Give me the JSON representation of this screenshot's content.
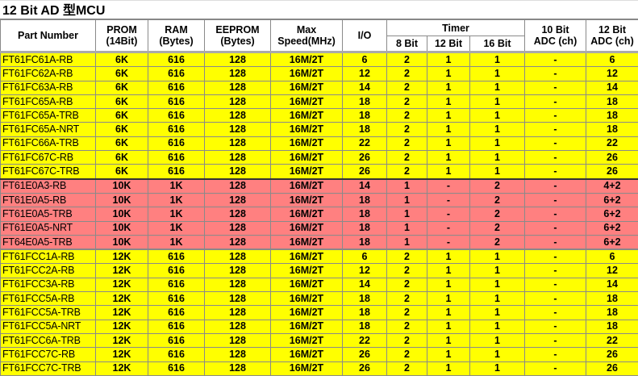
{
  "title": "12 Bit AD 型MCU",
  "headers": {
    "part": "Part Number",
    "prom": [
      "PROM",
      "(14Bit)"
    ],
    "ram": [
      "RAM",
      "(Bytes)"
    ],
    "eeprom": [
      "EEPROM",
      "(Bytes)"
    ],
    "speed": [
      "Max",
      "Speed(MHz)"
    ],
    "io": "I/O",
    "timer": "Timer",
    "timer_sub": [
      "8 Bit",
      "12 Bit",
      "16 Bit"
    ],
    "adc10": [
      "10 Bit",
      "ADC (ch)"
    ],
    "adc12": [
      "12 Bit",
      "ADC (ch)"
    ]
  },
  "colors": {
    "yellow": "#ffff00",
    "red": "#ff8080"
  },
  "rows": [
    {
      "group": "yellow",
      "cells": [
        "FT61FC61A-RB",
        "6K",
        "616",
        "128",
        "16M/2T",
        "6",
        "2",
        "1",
        "1",
        "-",
        "6"
      ]
    },
    {
      "group": "yellow",
      "cells": [
        "FT61FC62A-RB",
        "6K",
        "616",
        "128",
        "16M/2T",
        "12",
        "2",
        "1",
        "1",
        "-",
        "12"
      ]
    },
    {
      "group": "yellow",
      "cells": [
        "FT61FC63A-RB",
        "6K",
        "616",
        "128",
        "16M/2T",
        "14",
        "2",
        "1",
        "1",
        "-",
        "14"
      ]
    },
    {
      "group": "yellow",
      "cells": [
        "FT61FC65A-RB",
        "6K",
        "616",
        "128",
        "16M/2T",
        "18",
        "2",
        "1",
        "1",
        "-",
        "18"
      ]
    },
    {
      "group": "yellow",
      "cells": [
        "FT61FC65A-TRB",
        "6K",
        "616",
        "128",
        "16M/2T",
        "18",
        "2",
        "1",
        "1",
        "-",
        "18"
      ]
    },
    {
      "group": "yellow",
      "cells": [
        "FT61FC65A-NRT",
        "6K",
        "616",
        "128",
        "16M/2T",
        "18",
        "2",
        "1",
        "1",
        "-",
        "18"
      ]
    },
    {
      "group": "yellow",
      "cells": [
        "FT61FC66A-TRB",
        "6K",
        "616",
        "128",
        "16M/2T",
        "22",
        "2",
        "1",
        "1",
        "-",
        "22"
      ]
    },
    {
      "group": "yellow",
      "cells": [
        "FT61FC67C-RB",
        "6K",
        "616",
        "128",
        "16M/2T",
        "26",
        "2",
        "1",
        "1",
        "-",
        "26"
      ]
    },
    {
      "group": "yellow",
      "cells": [
        "FT61FC67C-TRB",
        "6K",
        "616",
        "128",
        "16M/2T",
        "26",
        "2",
        "1",
        "1",
        "-",
        "26"
      ]
    },
    {
      "group": "red",
      "cells": [
        "FT61E0A3-RB",
        "10K",
        "1K",
        "128",
        "16M/2T",
        "14",
        "1",
        "-",
        "2",
        "-",
        "4+2"
      ]
    },
    {
      "group": "red",
      "cells": [
        "FT61E0A5-RB",
        "10K",
        "1K",
        "128",
        "16M/2T",
        "18",
        "1",
        "-",
        "2",
        "-",
        "6+2"
      ]
    },
    {
      "group": "red",
      "cells": [
        "FT61E0A5-TRB",
        "10K",
        "1K",
        "128",
        "16M/2T",
        "18",
        "1",
        "-",
        "2",
        "-",
        "6+2"
      ]
    },
    {
      "group": "red",
      "cells": [
        "FT61E0A5-NRT",
        "10K",
        "1K",
        "128",
        "16M/2T",
        "18",
        "1",
        "-",
        "2",
        "-",
        "6+2"
      ]
    },
    {
      "group": "red",
      "cells": [
        "FT64E0A5-TRB",
        "10K",
        "1K",
        "128",
        "16M/2T",
        "18",
        "1",
        "-",
        "2",
        "-",
        "6+2"
      ]
    },
    {
      "group": "yellow",
      "cells": [
        "FT61FCC1A-RB",
        "12K",
        "616",
        "128",
        "16M/2T",
        "6",
        "2",
        "1",
        "1",
        "-",
        "6"
      ]
    },
    {
      "group": "yellow",
      "cells": [
        "FT61FCC2A-RB",
        "12K",
        "616",
        "128",
        "16M/2T",
        "12",
        "2",
        "1",
        "1",
        "-",
        "12"
      ]
    },
    {
      "group": "yellow",
      "cells": [
        "FT61FCC3A-RB",
        "12K",
        "616",
        "128",
        "16M/2T",
        "14",
        "2",
        "1",
        "1",
        "-",
        "14"
      ]
    },
    {
      "group": "yellow",
      "cells": [
        "FT61FCC5A-RB",
        "12K",
        "616",
        "128",
        "16M/2T",
        "18",
        "2",
        "1",
        "1",
        "-",
        "18"
      ]
    },
    {
      "group": "yellow",
      "cells": [
        "FT61FCC5A-TRB",
        "12K",
        "616",
        "128",
        "16M/2T",
        "18",
        "2",
        "1",
        "1",
        "-",
        "18"
      ]
    },
    {
      "group": "yellow",
      "cells": [
        "FT61FCC5A-NRT",
        "12K",
        "616",
        "128",
        "16M/2T",
        "18",
        "2",
        "1",
        "1",
        "-",
        "18"
      ]
    },
    {
      "group": "yellow",
      "cells": [
        "FT61FCC6A-TRB",
        "12K",
        "616",
        "128",
        "16M/2T",
        "22",
        "2",
        "1",
        "1",
        "-",
        "22"
      ]
    },
    {
      "group": "yellow",
      "cells": [
        "FT61FCC7C-RB",
        "12K",
        "616",
        "128",
        "16M/2T",
        "26",
        "2",
        "1",
        "1",
        "-",
        "26"
      ]
    },
    {
      "group": "yellow",
      "cells": [
        "FT61FCC7C-TRB",
        "12K",
        "616",
        "128",
        "16M/2T",
        "26",
        "2",
        "1",
        "1",
        "-",
        "26"
      ]
    }
  ]
}
